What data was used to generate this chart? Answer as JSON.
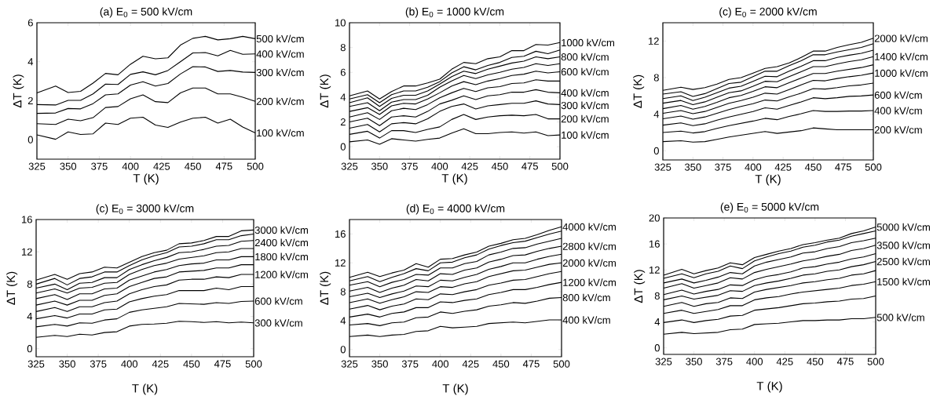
{
  "chart_data": [
    {
      "type": "line",
      "title": "(a)  E$_{0}$ = 500 kV/cm",
      "xlabel": "T (K)",
      "ylabel": "ΔT (K)",
      "color": "#000000",
      "xlim": [
        325,
        500
      ],
      "ylim": [
        -1,
        6
      ],
      "xticks": [
        325,
        350,
        375,
        400,
        425,
        450,
        475,
        500
      ],
      "yticks": [
        0,
        2,
        4,
        6
      ],
      "x": [
        325,
        340,
        350,
        360,
        370,
        380,
        390,
        400,
        410,
        420,
        430,
        440,
        450,
        460,
        470,
        480,
        490,
        500
      ],
      "series": [
        {
          "name": "100 kV/cm",
          "values": [
            0.25,
            0.02,
            0.4,
            0.27,
            0.3,
            0.85,
            0.78,
            1.1,
            1.15,
            0.75,
            0.63,
            0.9,
            1.1,
            1.15,
            0.85,
            1.05,
            0.65,
            0.35
          ]
        },
        {
          "name": "200 kV/cm",
          "values": [
            0.82,
            0.78,
            1.05,
            0.97,
            1.13,
            1.65,
            1.7,
            2.1,
            2.3,
            1.95,
            1.9,
            2.4,
            2.65,
            2.65,
            2.35,
            2.35,
            2.18,
            1.97
          ]
        },
        {
          "name": "300 kV/cm",
          "values": [
            1.35,
            1.37,
            1.6,
            1.58,
            1.85,
            2.3,
            2.35,
            2.8,
            2.97,
            2.75,
            2.88,
            3.37,
            3.75,
            3.73,
            3.5,
            3.55,
            3.47,
            3.45
          ]
        },
        {
          "name": "400 kV/cm",
          "values": [
            1.8,
            1.78,
            2.02,
            2.02,
            2.35,
            2.85,
            2.83,
            3.35,
            3.48,
            3.33,
            3.55,
            4.0,
            4.45,
            4.47,
            4.3,
            4.58,
            4.38,
            4.4
          ]
        },
        {
          "name": "500 kV/cm",
          "values": [
            2.4,
            2.75,
            2.42,
            2.48,
            2.9,
            3.4,
            3.33,
            3.87,
            4.28,
            4.15,
            4.2,
            4.85,
            5.2,
            5.3,
            5.12,
            5.18,
            5.3,
            5.18
          ]
        }
      ]
    },
    {
      "type": "line",
      "title": "(b)   E$_{0}$ = 1000 kV/cm",
      "xlabel": "T (K)",
      "ylabel": "ΔT (K)",
      "color": "#000000",
      "xlim": [
        325,
        500
      ],
      "ylim": [
        -1,
        10
      ],
      "xticks": [
        325,
        350,
        375,
        400,
        425,
        450,
        475,
        500
      ],
      "yticks": [
        0,
        2,
        4,
        6,
        8,
        10
      ],
      "x": [
        325,
        340,
        350,
        360,
        370,
        380,
        390,
        400,
        410,
        420,
        430,
        440,
        450,
        460,
        470,
        480,
        490,
        500
      ],
      "series": [
        {
          "name": "100 kV/cm",
          "values": [
            0.4,
            0.55,
            0.2,
            0.65,
            0.55,
            0.45,
            0.6,
            0.7,
            1.1,
            1.45,
            1.05,
            1.05,
            1.15,
            1.2,
            1.1,
            1.2,
            0.9,
            0.95
          ]
        },
        {
          "name": "200 kV/cm",
          "values": [
            1.0,
            1.25,
            0.7,
            1.3,
            1.3,
            1.15,
            1.4,
            1.6,
            2.2,
            2.6,
            2.2,
            2.4,
            2.5,
            2.55,
            2.5,
            2.6,
            2.25,
            2.25
          ]
        },
        {
          "name": "300 kV/cm",
          "values": [
            1.5,
            1.8,
            1.2,
            1.85,
            1.95,
            1.85,
            2.25,
            2.85,
            3.25,
            3.45,
            3.05,
            3.3,
            3.4,
            3.5,
            3.5,
            3.7,
            3.45,
            3.4
          ]
        },
        {
          "name": "400 kV/cm",
          "values": [
            2.0,
            2.3,
            1.7,
            2.4,
            2.5,
            2.4,
            2.85,
            3.45,
            3.75,
            4.1,
            3.8,
            4.1,
            4.2,
            4.4,
            4.4,
            4.6,
            4.4,
            4.35
          ]
        },
        {
          "values": [
            2.4,
            2.75,
            2.2,
            2.9,
            3.1,
            3.0,
            3.4,
            3.95,
            4.35,
            4.7,
            4.45,
            4.75,
            4.85,
            5.1,
            5.15,
            5.4,
            5.3,
            5.3
          ]
        },
        {
          "name": "600 kV/cm",
          "values": [
            2.85,
            3.15,
            2.6,
            3.3,
            3.5,
            3.45,
            3.85,
            4.35,
            4.9,
            5.25,
            5.0,
            5.3,
            5.5,
            5.75,
            5.85,
            6.1,
            5.95,
            6.05
          ]
        },
        {
          "values": [
            3.25,
            3.55,
            2.9,
            3.6,
            3.8,
            3.8,
            4.15,
            4.8,
            5.3,
            5.75,
            5.5,
            5.8,
            6.0,
            6.25,
            6.4,
            6.7,
            6.55,
            6.7
          ]
        },
        {
          "name": "800 kV/cm",
          "values": [
            3.55,
            3.95,
            3.25,
            3.9,
            4.15,
            4.15,
            4.5,
            5.05,
            5.65,
            6.1,
            5.9,
            6.25,
            6.5,
            6.75,
            6.9,
            7.25,
            7.1,
            7.25
          ]
        },
        {
          "values": [
            3.85,
            4.2,
            3.55,
            4.2,
            4.5,
            4.5,
            4.8,
            5.25,
            5.95,
            6.45,
            6.2,
            6.55,
            6.8,
            7.2,
            7.3,
            7.7,
            7.5,
            7.8
          ]
        },
        {
          "name": "1000 kV/cm",
          "values": [
            4.1,
            4.5,
            3.85,
            4.45,
            4.9,
            4.9,
            5.15,
            5.45,
            6.25,
            6.8,
            6.7,
            7.1,
            7.25,
            7.75,
            7.75,
            8.25,
            8.2,
            8.4
          ]
        }
      ]
    },
    {
      "type": "line",
      "title": "(c)   E$_{0}$ = 2000 kV/cm",
      "xlabel": "T (K)",
      "ylabel": "ΔT (K)",
      "color": "#000000",
      "xlim": [
        325,
        500
      ],
      "ylim": [
        -1,
        14
      ],
      "xticks": [
        325,
        350,
        375,
        400,
        425,
        450,
        475,
        500
      ],
      "yticks": [
        0,
        4,
        8,
        12
      ],
      "x": [
        325,
        340,
        350,
        360,
        370,
        380,
        390,
        400,
        410,
        420,
        430,
        440,
        450,
        460,
        470,
        480,
        490,
        500
      ],
      "series": [
        {
          "name": "200 kV/cm",
          "values": [
            1.0,
            1.1,
            0.95,
            1.0,
            1.25,
            1.5,
            1.7,
            1.9,
            2.1,
            1.9,
            2.05,
            2.2,
            2.5,
            2.4,
            2.3,
            2.3,
            2.3,
            2.3
          ]
        },
        {
          "name": "400 kV/cm",
          "values": [
            2.0,
            2.15,
            1.95,
            2.1,
            2.45,
            2.75,
            3.0,
            3.25,
            3.55,
            3.4,
            3.75,
            4.05,
            4.4,
            4.3,
            4.3,
            4.35,
            4.35,
            4.4
          ]
        },
        {
          "name": "600 kV/cm",
          "values": [
            2.8,
            3.05,
            2.75,
            2.95,
            3.35,
            3.7,
            4.0,
            4.3,
            4.7,
            4.55,
            4.95,
            5.35,
            5.8,
            5.7,
            5.8,
            5.95,
            6.0,
            6.1
          ]
        },
        {
          "values": [
            3.5,
            3.8,
            3.45,
            3.7,
            4.1,
            4.5,
            4.85,
            5.15,
            5.55,
            5.45,
            5.9,
            6.3,
            6.8,
            6.75,
            6.9,
            7.1,
            7.2,
            7.4
          ]
        },
        {
          "name": "1000 kV/cm",
          "values": [
            4.1,
            4.4,
            4.05,
            4.3,
            4.75,
            5.2,
            5.5,
            5.85,
            6.3,
            6.2,
            6.7,
            7.2,
            7.7,
            7.65,
            7.9,
            8.1,
            8.25,
            8.5
          ]
        },
        {
          "values": [
            4.6,
            4.95,
            4.55,
            4.85,
            5.3,
            5.8,
            6.05,
            6.5,
            7.0,
            6.9,
            7.45,
            7.95,
            8.45,
            8.45,
            8.7,
            8.9,
            9.1,
            9.4
          ]
        },
        {
          "name": "1400 kV/cm",
          "values": [
            5.2,
            5.5,
            5.05,
            5.35,
            5.85,
            6.35,
            6.55,
            7.05,
            7.6,
            7.55,
            8.1,
            8.65,
            9.2,
            9.2,
            9.5,
            9.75,
            9.95,
            10.3
          ]
        },
        {
          "values": [
            5.7,
            6.0,
            5.5,
            5.85,
            6.35,
            6.85,
            7.05,
            7.6,
            8.15,
            8.1,
            8.7,
            9.25,
            9.85,
            9.85,
            10.2,
            10.45,
            10.65,
            11.0
          ]
        },
        {
          "values": [
            6.2,
            6.45,
            5.95,
            6.25,
            6.8,
            7.35,
            7.5,
            8.1,
            8.7,
            8.7,
            9.3,
            9.85,
            10.5,
            10.5,
            10.8,
            11.05,
            11.3,
            11.7
          ]
        },
        {
          "name": "2000 kV/cm",
          "values": [
            6.6,
            6.95,
            6.7,
            6.9,
            7.3,
            7.8,
            8.0,
            8.5,
            9.0,
            9.2,
            9.6,
            10.2,
            10.9,
            10.9,
            11.3,
            11.6,
            11.85,
            12.3
          ]
        }
      ]
    },
    {
      "type": "line",
      "title": "(c)  E$_{0}$ = 3000 kV/cm",
      "xlabel": "T (K)",
      "ylabel": "ΔT (K)",
      "color": "#000000",
      "xlim": [
        325,
        500
      ],
      "ylim": [
        -1,
        16
      ],
      "xticks": [
        325,
        350,
        375,
        400,
        425,
        450,
        475,
        500
      ],
      "yticks": [
        0,
        4,
        8,
        12,
        16
      ],
      "x": [
        325,
        340,
        350,
        360,
        370,
        380,
        390,
        400,
        410,
        420,
        430,
        440,
        450,
        460,
        470,
        480,
        490,
        500
      ],
      "series": [
        {
          "name": "300 kV/cm",
          "values": [
            1.4,
            1.65,
            1.5,
            1.8,
            1.7,
            2.0,
            2.1,
            2.8,
            3.0,
            3.05,
            3.15,
            3.4,
            3.35,
            3.25,
            3.35,
            3.2,
            3.3,
            3.2
          ]
        },
        {
          "name": "600 kV/cm",
          "values": [
            2.7,
            3.0,
            2.8,
            3.2,
            3.15,
            3.55,
            3.7,
            4.5,
            4.8,
            5.0,
            5.2,
            5.6,
            5.55,
            5.5,
            5.7,
            5.6,
            5.85,
            5.9
          ]
        },
        {
          "values": [
            3.7,
            4.1,
            3.8,
            4.3,
            4.3,
            4.8,
            4.9,
            5.8,
            6.2,
            6.5,
            6.7,
            7.2,
            7.2,
            7.2,
            7.5,
            7.3,
            7.7,
            7.7
          ]
        },
        {
          "name": "1200 kV/cm",
          "values": [
            4.6,
            5.1,
            4.6,
            5.2,
            5.2,
            5.7,
            5.9,
            6.8,
            7.3,
            7.7,
            7.9,
            8.5,
            8.6,
            8.6,
            8.9,
            8.8,
            9.2,
            9.2
          ]
        },
        {
          "values": [
            5.4,
            5.9,
            5.4,
            6.0,
            6.0,
            6.6,
            6.8,
            7.7,
            8.2,
            8.7,
            8.9,
            9.5,
            9.6,
            9.7,
            10.0,
            10.0,
            10.4,
            10.4
          ]
        },
        {
          "name": "1800 kV/cm",
          "values": [
            6.2,
            6.7,
            6.1,
            6.8,
            6.8,
            7.4,
            7.5,
            8.5,
            9.0,
            9.5,
            9.8,
            10.3,
            10.5,
            10.6,
            11.0,
            11.0,
            11.4,
            11.4
          ]
        },
        {
          "values": [
            6.9,
            7.4,
            6.9,
            7.5,
            7.6,
            8.1,
            8.2,
            9.2,
            9.8,
            10.3,
            10.6,
            11.1,
            11.3,
            11.5,
            11.9,
            12.0,
            12.4,
            12.4
          ]
        },
        {
          "name": "2400 kV/cm",
          "values": [
            7.5,
            8.0,
            7.3,
            8.1,
            8.2,
            8.8,
            8.8,
            9.8,
            10.4,
            10.9,
            11.3,
            11.9,
            12.0,
            12.3,
            12.7,
            12.8,
            13.3,
            13.4
          ]
        },
        {
          "values": [
            8.0,
            8.7,
            7.9,
            8.7,
            8.9,
            9.5,
            9.5,
            10.3,
            11.0,
            11.5,
            11.9,
            12.6,
            12.7,
            13.0,
            13.5,
            13.5,
            14.0,
            14.2
          ]
        },
        {
          "name": "3000 kV/cm",
          "values": [
            8.5,
            9.2,
            8.6,
            9.3,
            9.5,
            10.1,
            10.0,
            10.7,
            11.4,
            11.9,
            12.2,
            13.0,
            13.1,
            13.4,
            13.9,
            13.9,
            14.6,
            14.7
          ]
        }
      ]
    },
    {
      "type": "line",
      "title": "(d)   E$_{0}$ = 4000 kV/cm",
      "xlabel": "T (K)",
      "ylabel": "ΔT (K)",
      "color": "#000000",
      "xlim": [
        325,
        500
      ],
      "ylim": [
        -1,
        18
      ],
      "xticks": [
        325,
        350,
        375,
        400,
        425,
        450,
        475,
        500
      ],
      "yticks": [
        0,
        4,
        8,
        12,
        16
      ],
      "x": [
        325,
        340,
        350,
        360,
        370,
        380,
        390,
        400,
        410,
        420,
        430,
        440,
        450,
        460,
        470,
        480,
        490,
        500
      ],
      "series": [
        {
          "name": "400 kV/cm",
          "values": [
            1.8,
            2.0,
            1.8,
            2.0,
            2.1,
            2.5,
            2.6,
            3.2,
            3.0,
            3.1,
            3.2,
            3.6,
            3.7,
            3.8,
            3.7,
            3.9,
            4.1,
            4.1
          ]
        },
        {
          "name": "800 kV/cm",
          "values": [
            3.4,
            3.6,
            3.3,
            3.7,
            3.8,
            4.4,
            4.5,
            5.2,
            5.0,
            5.3,
            5.5,
            6.0,
            6.2,
            6.5,
            6.4,
            6.7,
            7.1,
            7.2
          ]
        },
        {
          "name": "1200 kV/cm",
          "values": [
            4.5,
            4.9,
            4.5,
            5.0,
            5.2,
            5.8,
            5.8,
            6.6,
            6.5,
            6.8,
            7.0,
            7.6,
            7.9,
            8.3,
            8.3,
            8.6,
            9.0,
            9.3
          ]
        },
        {
          "values": [
            5.6,
            6.1,
            5.5,
            6.0,
            6.3,
            7.0,
            6.9,
            7.7,
            7.6,
            8.0,
            8.3,
            8.9,
            9.2,
            9.6,
            9.7,
            10.1,
            10.5,
            10.8
          ]
        },
        {
          "name": "2000 kV/cm",
          "values": [
            6.5,
            7.0,
            6.4,
            6.9,
            7.3,
            8.0,
            7.9,
            8.7,
            8.6,
            9.1,
            9.4,
            10.1,
            10.5,
            10.9,
            11.0,
            11.4,
            11.8,
            12.0
          ]
        },
        {
          "values": [
            7.3,
            7.8,
            7.2,
            7.7,
            8.1,
            8.8,
            8.7,
            9.6,
            9.5,
            10.0,
            10.4,
            11.1,
            11.5,
            12.0,
            12.0,
            12.5,
            12.9,
            13.2
          ]
        },
        {
          "name": "2800 kV/cm",
          "values": [
            8.1,
            8.6,
            7.9,
            8.5,
            8.9,
            9.7,
            9.5,
            10.5,
            10.4,
            11.0,
            11.3,
            12.1,
            12.5,
            13.0,
            13.1,
            13.6,
            14.0,
            14.3
          ]
        },
        {
          "values": [
            8.9,
            9.4,
            8.7,
            9.3,
            9.7,
            10.4,
            10.3,
            11.3,
            11.3,
            11.9,
            12.2,
            13.1,
            13.5,
            14.0,
            14.1,
            14.6,
            15.0,
            15.4
          ]
        },
        {
          "values": [
            9.5,
            10.1,
            9.4,
            10.0,
            10.5,
            11.2,
            10.9,
            12.0,
            12.1,
            12.7,
            13.1,
            13.9,
            14.4,
            14.8,
            15.0,
            15.5,
            16.0,
            16.4
          ]
        },
        {
          "name": "4000 kV/cm",
          "values": [
            10.0,
            10.7,
            10.1,
            10.6,
            11.0,
            11.9,
            11.4,
            12.5,
            12.6,
            13.1,
            13.5,
            14.3,
            14.7,
            15.2,
            15.4,
            15.9,
            16.5,
            17.0
          ]
        }
      ]
    },
    {
      "type": "line",
      "title": "(e)   E$_{0}$ = 5000 kV/cm",
      "xlabel": "T (K)",
      "ylabel": "ΔT (K)",
      "color": "#000000",
      "xlim": [
        325,
        500
      ],
      "ylim": [
        -1,
        20
      ],
      "xticks": [
        325,
        350,
        375,
        400,
        425,
        450,
        475,
        500
      ],
      "yticks": [
        0,
        4,
        8,
        12,
        16,
        20
      ],
      "x": [
        325,
        340,
        350,
        360,
        370,
        380,
        390,
        400,
        410,
        420,
        430,
        440,
        450,
        460,
        470,
        480,
        490,
        500
      ],
      "series": [
        {
          "name": "500 kV/cm",
          "values": [
            2.1,
            2.4,
            2.2,
            2.3,
            2.4,
            2.8,
            2.9,
            3.6,
            3.7,
            3.8,
            4.0,
            4.2,
            4.2,
            4.3,
            4.3,
            4.5,
            4.5,
            4.7
          ]
        },
        {
          "values": [
            3.9,
            4.3,
            3.9,
            4.2,
            4.4,
            4.9,
            5.0,
            5.8,
            6.0,
            6.2,
            6.5,
            6.8,
            6.9,
            7.1,
            7.2,
            7.5,
            7.6,
            8.0
          ]
        },
        {
          "name": "1500 kV/cm",
          "values": [
            5.3,
            5.8,
            5.3,
            5.6,
            5.9,
            6.5,
            6.5,
            7.4,
            7.7,
            7.9,
            8.3,
            8.6,
            8.8,
            9.0,
            9.2,
            9.6,
            9.8,
            10.2
          ]
        },
        {
          "values": [
            6.4,
            7.0,
            6.4,
            6.8,
            7.0,
            7.7,
            7.6,
            8.6,
            9.0,
            9.3,
            9.6,
            10.0,
            10.2,
            10.5,
            10.7,
            11.2,
            11.4,
            11.9
          ]
        },
        {
          "name": "2500 kV/cm",
          "values": [
            7.4,
            8.0,
            7.5,
            7.8,
            8.1,
            8.8,
            8.7,
            9.6,
            10.0,
            10.3,
            10.7,
            11.2,
            11.4,
            11.8,
            12.0,
            12.5,
            12.8,
            13.3
          ]
        },
        {
          "values": [
            8.2,
            8.9,
            8.3,
            8.7,
            9.0,
            9.7,
            9.6,
            10.5,
            11.0,
            11.3,
            11.7,
            12.3,
            12.5,
            12.9,
            13.2,
            13.7,
            14.0,
            14.5
          ]
        },
        {
          "name": "3500 kV/cm",
          "values": [
            9.2,
            9.9,
            9.2,
            9.6,
            10.0,
            10.8,
            10.6,
            11.6,
            12.1,
            12.5,
            12.9,
            13.4,
            13.7,
            14.1,
            14.4,
            15.0,
            15.3,
            15.8
          ]
        },
        {
          "values": [
            10.0,
            10.6,
            10.0,
            10.4,
            10.9,
            11.6,
            11.4,
            12.6,
            13.2,
            13.6,
            14.0,
            14.6,
            14.8,
            15.3,
            15.6,
            16.2,
            16.5,
            16.9
          ]
        },
        {
          "values": [
            10.7,
            11.4,
            10.8,
            11.4,
            11.8,
            12.6,
            12.2,
            13.4,
            14.0,
            14.5,
            14.9,
            15.5,
            15.8,
            16.3,
            16.6,
            17.2,
            17.6,
            18.0
          ]
        },
        {
          "name": "5000 kV/cm",
          "values": [
            11.2,
            12.1,
            11.4,
            11.9,
            12.3,
            13.1,
            12.8,
            13.9,
            14.4,
            14.9,
            15.3,
            15.9,
            16.2,
            16.6,
            16.9,
            17.6,
            18.0,
            18.6
          ]
        }
      ]
    }
  ]
}
